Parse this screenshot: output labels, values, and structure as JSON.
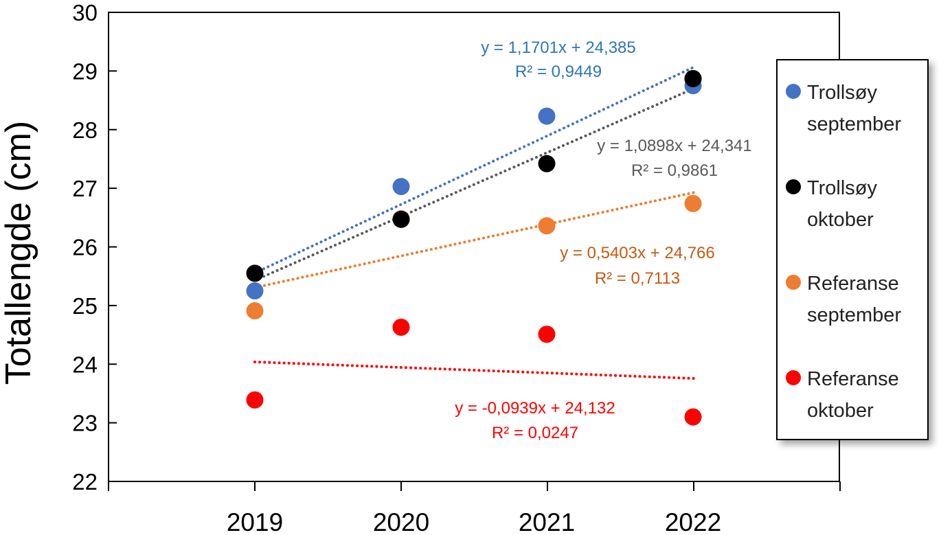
{
  "chart_data": {
    "type": "scatter",
    "title": "",
    "xlabel": "",
    "ylabel": "Totallengde (cm)",
    "categories": [
      "2019",
      "2020",
      "2021",
      "2022"
    ],
    "x": [
      2019,
      2020,
      2021,
      2022
    ],
    "ylim": [
      22,
      30
    ],
    "yticks": [
      "22",
      "23",
      "24",
      "25",
      "26",
      "27",
      "28",
      "29",
      "30"
    ],
    "grid": false,
    "legend_position": "right",
    "series": [
      {
        "name": "Trollsøy september",
        "legend_lines": [
          "Trollsøy",
          "september"
        ],
        "color": "#4472c4",
        "values": [
          25.25,
          27.03,
          28.23,
          28.75
        ],
        "trendline": {
          "slope": 1.1701,
          "intercept": 24.385,
          "equation": "y = 1,1701x + 24,385",
          "r2": "R² = 0,9449",
          "label_color": "#2e75b6"
        }
      },
      {
        "name": "Trollsøy oktober",
        "legend_lines": [
          "Trollsøy",
          "oktober"
        ],
        "color": "#000000",
        "values": [
          25.55,
          26.47,
          27.42,
          28.87
        ],
        "trendline": {
          "slope": 1.0898,
          "intercept": 24.341,
          "equation": "y = 1,0898x + 24,341",
          "r2": "R² = 0,9861",
          "label_color": "#595959",
          "line_color": "#595959"
        }
      },
      {
        "name": "Referanse september",
        "legend_lines": [
          "Referanse",
          "september"
        ],
        "color": "#ed7d31",
        "values": [
          24.91,
          26.48,
          26.36,
          26.74
        ],
        "trendline": {
          "slope": 0.5403,
          "intercept": 24.766,
          "equation": "y = 0,5403x + 24,766",
          "r2": "R² = 0,7113",
          "label_color": "#c55a11"
        }
      },
      {
        "name": "Referanse oktober",
        "legend_lines": [
          "Referanse",
          "oktober"
        ],
        "color": "#ff0000",
        "values": [
          23.39,
          24.63,
          24.51,
          23.1
        ],
        "trendline": {
          "slope": -0.0939,
          "intercept": 24.132,
          "equation": "y = -0,0939x + 24,132",
          "r2": "R² = 0,0247",
          "label_color": "#ff0000"
        }
      }
    ]
  }
}
